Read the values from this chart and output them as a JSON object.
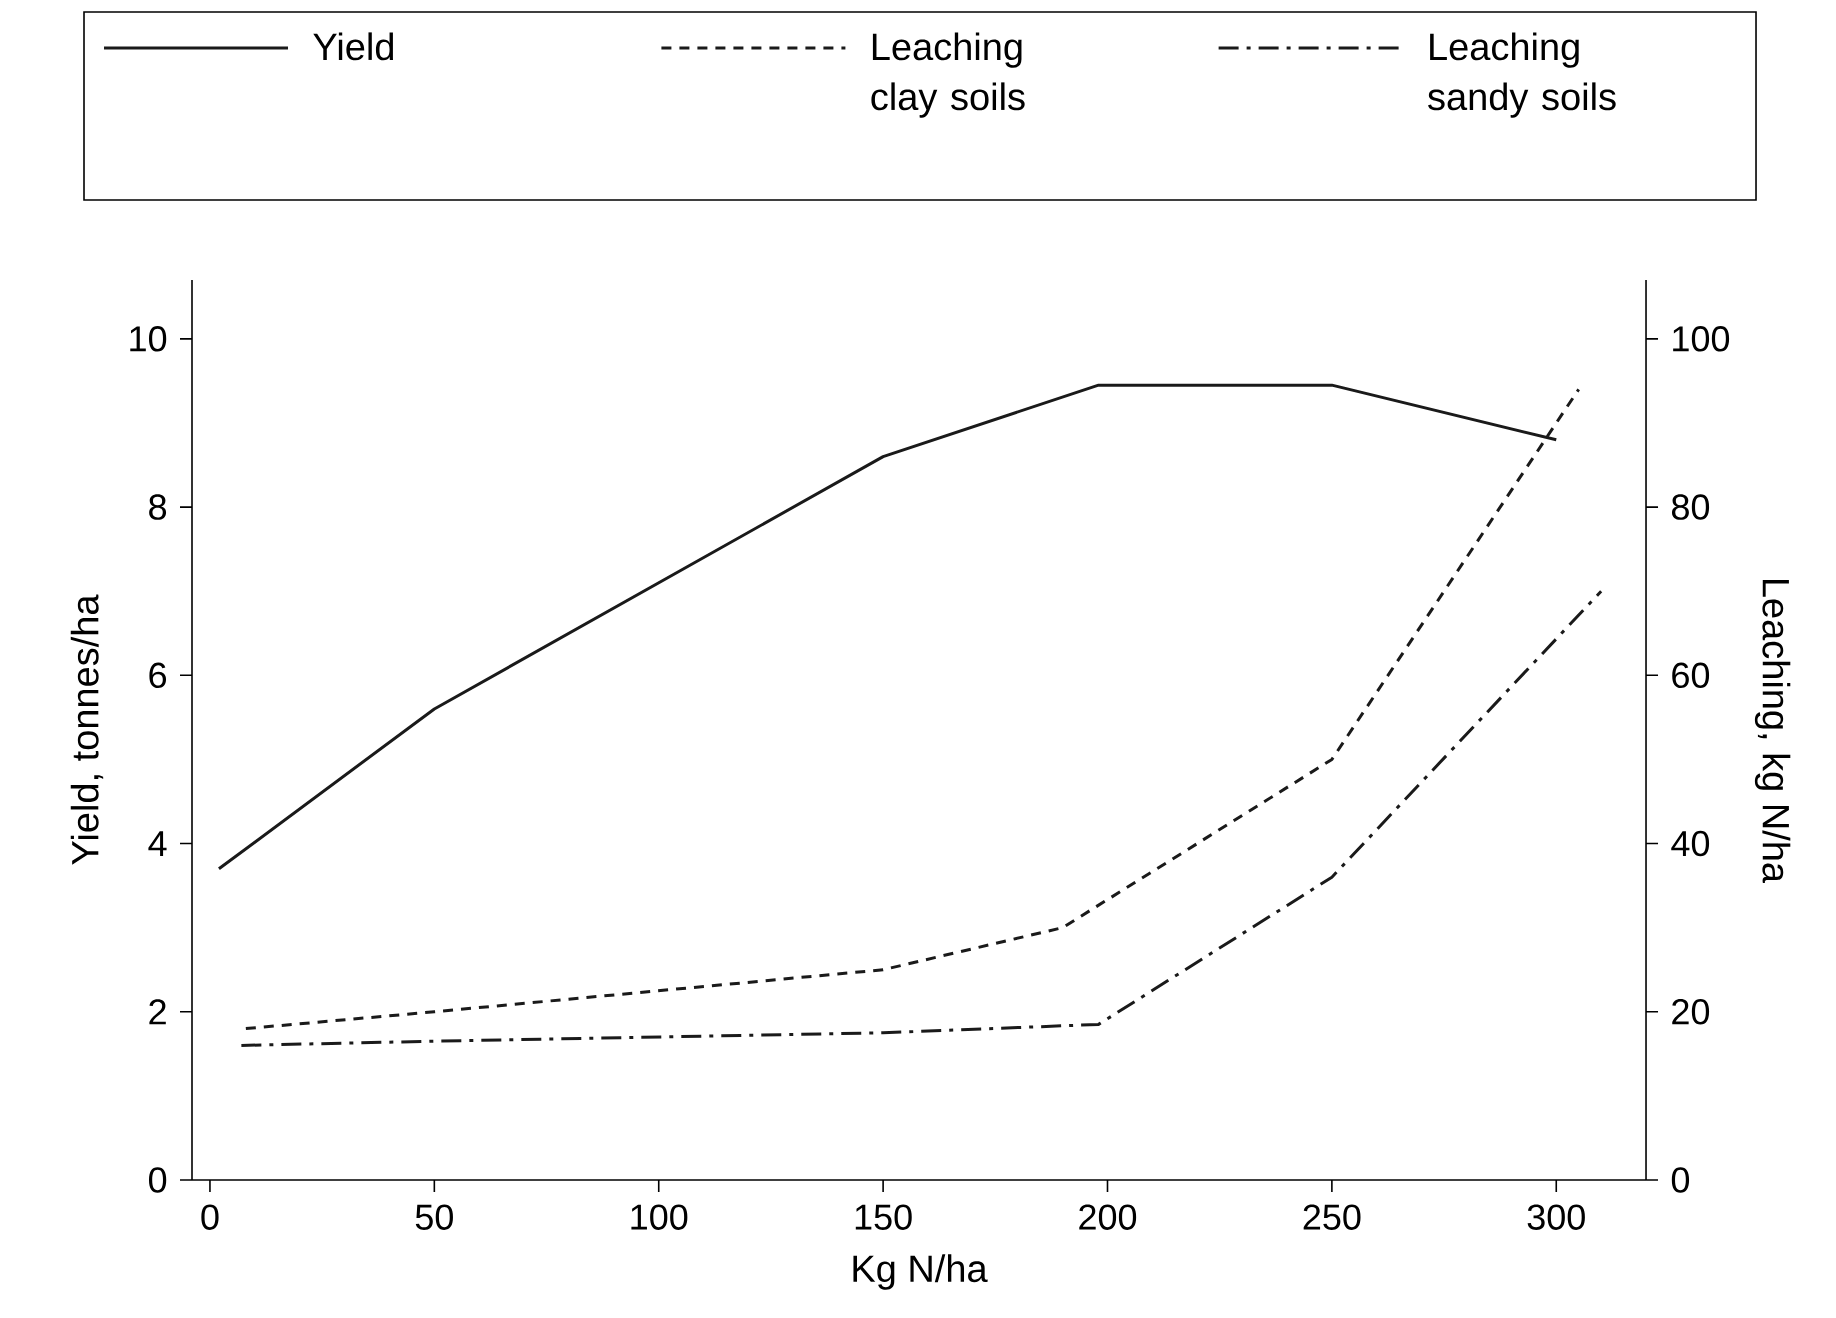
{
  "chart_data": {
    "type": "line",
    "xlabel": "Kg N/ha",
    "ylabel": "Yield, tonnes/ha",
    "y2label": "Leaching, kg N/ha",
    "xlim": [
      -4,
      320
    ],
    "xticks": [
      0,
      50,
      100,
      150,
      200,
      250,
      300
    ],
    "ylim": [
      0,
      10.7
    ],
    "yticks": [
      0,
      2,
      4,
      6,
      8,
      10
    ],
    "y2lim": [
      0,
      107
    ],
    "y2ticks": [
      0,
      20,
      40,
      60,
      80,
      100
    ],
    "legend": "top",
    "grid": false,
    "series": [
      {
        "name": "Yield",
        "color": "#1a1a1a",
        "line_style": "solid",
        "x": [
          2,
          50,
          150,
          198,
          250,
          300
        ],
        "values": [
          3.7,
          5.6,
          8.6,
          9.45,
          9.45,
          8.8
        ]
      },
      {
        "name": "Leaching clay soils",
        "color": "#1a1a1a",
        "line_style": "dashed",
        "axis": "y2",
        "x": [
          8,
          50,
          150,
          190,
          250,
          305
        ],
        "values": [
          18,
          20,
          25,
          30,
          50,
          94
        ]
      },
      {
        "name": "Leaching sandy soils",
        "color": "#1a1a1a",
        "line_style": "dashdot",
        "axis": "y2",
        "x": [
          7,
          50,
          150,
          198,
          250,
          310
        ],
        "values": [
          16,
          16.5,
          17.5,
          18.5,
          36,
          70
        ]
      }
    ]
  }
}
